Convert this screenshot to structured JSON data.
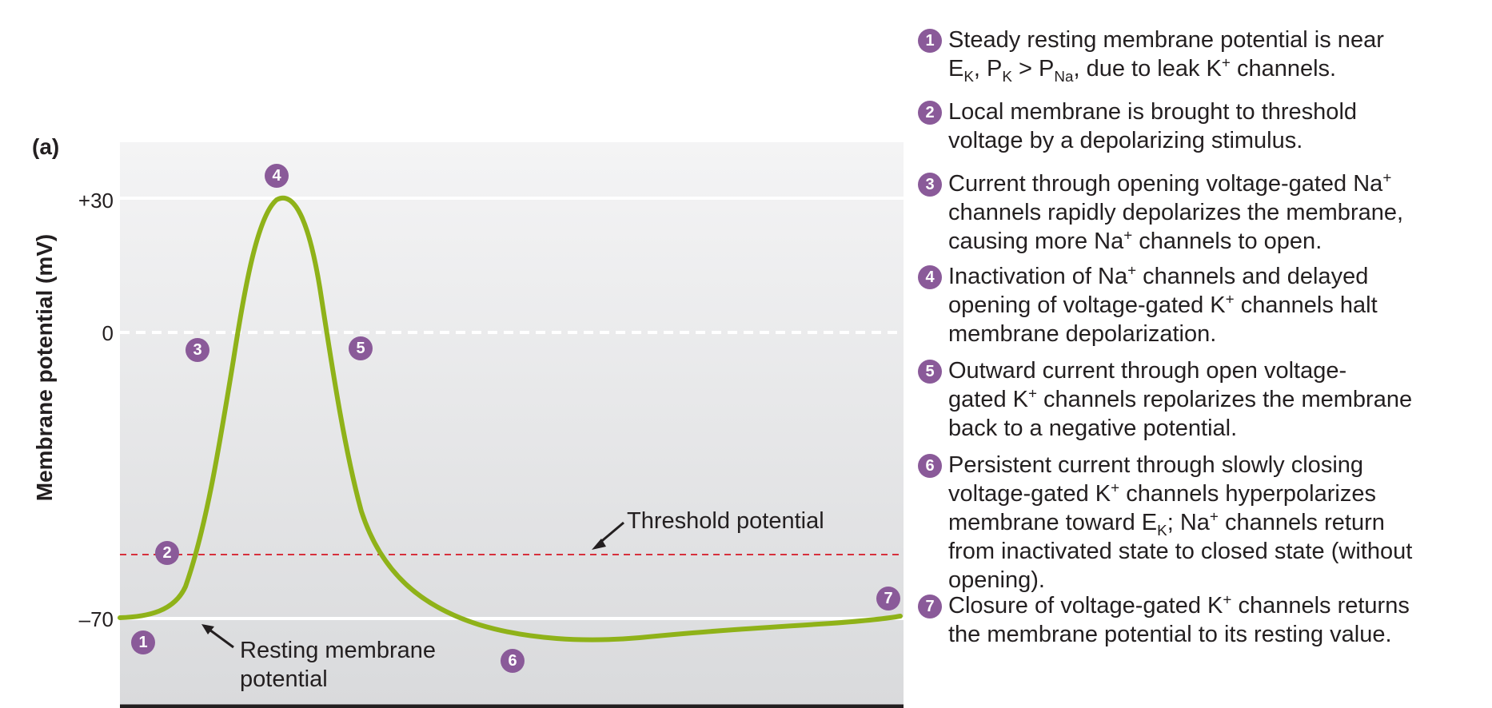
{
  "panel_label": "(a)",
  "y_axis": {
    "label": "Membrane potential (mV)",
    "ticks": [
      "+30",
      "0",
      "–70"
    ]
  },
  "annotations": {
    "threshold": "Threshold potential",
    "resting_line1": "Resting membrane",
    "resting_line2": "potential"
  },
  "markers": [
    "1",
    "2",
    "3",
    "4",
    "5",
    "6",
    "7"
  ],
  "steps": [
    {
      "num": "1",
      "lines": [
        "Steady resting membrane potential is near",
        "E<sub>K</sub>, P<sub>K</sub> > P<sub>Na</sub>, due to leak K<sup>+</sup> channels."
      ]
    },
    {
      "num": "2",
      "lines": [
        "Local membrane is brought to threshold",
        "voltage by a depolarizing stimulus."
      ]
    },
    {
      "num": "3",
      "lines": [
        "Current through opening voltage-gated Na<sup>+</sup>",
        "channels rapidly depolarizes the membrane,",
        "causing more Na<sup>+</sup> channels to open."
      ]
    },
    {
      "num": "4",
      "lines": [
        "Inactivation of Na<sup>+</sup> channels and delayed",
        "opening of voltage-gated K<sup>+</sup> channels halt",
        "membrane depolarization."
      ]
    },
    {
      "num": "5",
      "lines": [
        "Outward current through open voltage-",
        "gated K<sup>+</sup> channels repolarizes the membrane",
        "back to a negative potential."
      ]
    },
    {
      "num": "6",
      "lines": [
        "Persistent current through slowly closing",
        "voltage-gated K<sup>+</sup> channels hyperpolarizes",
        "membrane toward E<sub>K</sub>; Na<sup>+</sup> channels return",
        "from inactivated state to closed state (without",
        "opening)."
      ]
    },
    {
      "num": "7",
      "lines": [
        "Closure of voltage-gated K<sup>+</sup> channels returns",
        "the membrane potential to its resting value."
      ]
    }
  ],
  "colors": {
    "trace": "#8fb219",
    "threshold_line": "#d7303c",
    "badge": "#8a5a99",
    "panel_top": "#f4f4f5",
    "panel_bottom": "#d9dadc"
  }
}
